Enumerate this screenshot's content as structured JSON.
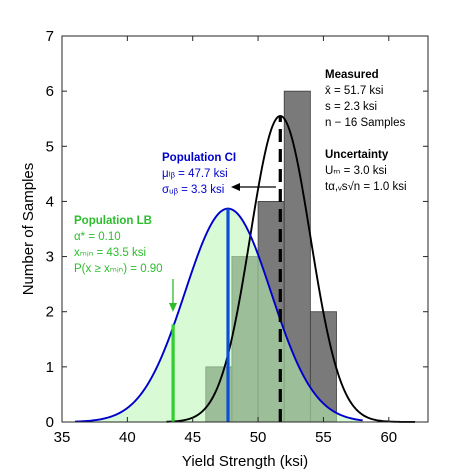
{
  "chart_data": {
    "type": "bar",
    "xlabel": "Yield Strength (ksi)",
    "ylabel": "Number of Samples",
    "xlim": [
      35,
      63
    ],
    "ylim": [
      0,
      7
    ],
    "x_ticks": [
      "35",
      "40",
      "45",
      "50",
      "55",
      "60"
    ],
    "y_ticks": [
      "0",
      "1",
      "2",
      "3",
      "4",
      "5",
      "6",
      "7"
    ],
    "grid": false,
    "histogram": {
      "bin_width": 2,
      "bins": [
        {
          "x0": 46,
          "x1": 48,
          "count": 1
        },
        {
          "x0": 48,
          "x1": 50,
          "count": 3
        },
        {
          "x0": 50,
          "x1": 52,
          "count": 4
        },
        {
          "x0": 52,
          "x1": 54,
          "count": 6
        },
        {
          "x0": 54,
          "x1": 56,
          "count": 2
        }
      ]
    },
    "series": [
      {
        "name": "Measured",
        "kind": "normal_pdf_curve",
        "mean": 51.7,
        "std": 2.3,
        "peak": 5.55,
        "color": "#000000"
      },
      {
        "name": "Population CI",
        "kind": "normal_pdf_curve",
        "mean": 47.7,
        "std": 3.3,
        "peak": 3.87,
        "color": "#0000cc",
        "fill": "#b8f5b0"
      }
    ],
    "vertical_lines": [
      {
        "x": 51.7,
        "top": 5.55,
        "style": "dashed",
        "color": "#000000"
      },
      {
        "x": 47.7,
        "top": 3.87,
        "style": "solid",
        "color": "#0a4fd8"
      },
      {
        "x": 43.5,
        "top": 1.77,
        "style": "solid",
        "color": "#33cc33"
      }
    ],
    "annotations": {
      "measured": {
        "color": "#000000",
        "title": "Measured",
        "lines": [
          "x̄ = 51.7 ksi",
          "s = 2.3 ksi",
          "n − 16 Samples"
        ]
      },
      "uncertainty": {
        "color": "#000000",
        "title": "Uncertainty",
        "lines": [
          "Uₘ = 3.0 ksi",
          "tα,ᵥs√n = 1.0 ksi"
        ]
      },
      "population_ci": {
        "color": "#0000cc",
        "title": "Population CI",
        "lines": [
          "μₗᵦ = 47.7 ksi",
          "σᵤᵦ = 3.3 ksi"
        ]
      },
      "population_lb": {
        "color": "#2dbd2d",
        "title": "Population LB",
        "lines": [
          "α* = 0.10",
          "xₘᵢₙ = 43.5 ksi",
          "P(x ≥ xₘᵢₙ) = 0.90"
        ]
      }
    }
  }
}
